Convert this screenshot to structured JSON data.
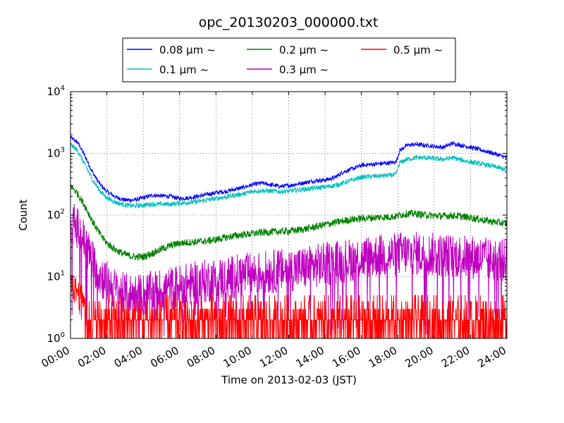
{
  "chart_data": {
    "type": "line",
    "title": "opc_20130203_000000.txt",
    "xlabel": "Time on 2013-02-03 (JST)",
    "ylabel": "Count",
    "yscale": "log",
    "ylim": [
      1,
      10000
    ],
    "xlim": [
      "00:00",
      "24:00"
    ],
    "grid": true,
    "legend_position": "top",
    "x_ticks": [
      "00:00",
      "02:00",
      "04:00",
      "06:00",
      "08:00",
      "10:00",
      "12:00",
      "14:00",
      "16:00",
      "18:00",
      "20:00",
      "22:00",
      "24:00"
    ],
    "y_ticks": [
      {
        "base": "10",
        "exp": "0",
        "value": 1
      },
      {
        "base": "10",
        "exp": "1",
        "value": 10
      },
      {
        "base": "10",
        "exp": "2",
        "value": 100
      },
      {
        "base": "10",
        "exp": "3",
        "value": 1000
      },
      {
        "base": "10",
        "exp": "4",
        "value": 10000
      }
    ],
    "series": [
      {
        "name": "0.08 μm ~",
        "color": "#0000ff",
        "x": [
          0,
          0.4,
          0.8,
          1.2,
          1.6,
          2.0,
          2.5,
          3.0,
          3.5,
          4.0,
          4.5,
          5.0,
          5.5,
          6.0,
          6.5,
          7.0,
          7.5,
          8.0,
          8.5,
          9.0,
          9.5,
          10.0,
          10.5,
          11.0,
          11.5,
          12.0,
          12.5,
          13.0,
          13.5,
          14.0,
          14.5,
          15.0,
          15.5,
          16.0,
          16.5,
          17.0,
          17.5,
          17.9,
          18.1,
          18.5,
          19.0,
          19.5,
          20.0,
          20.5,
          21.0,
          21.5,
          22.0,
          22.5,
          23.0,
          23.5,
          24.0
        ],
        "y": [
          1800,
          1500,
          900,
          500,
          320,
          240,
          195,
          175,
          175,
          190,
          210,
          205,
          200,
          185,
          190,
          200,
          215,
          230,
          240,
          260,
          280,
          310,
          330,
          310,
          290,
          300,
          320,
          340,
          360,
          370,
          400,
          500,
          560,
          640,
          660,
          680,
          700,
          720,
          1100,
          1350,
          1400,
          1350,
          1300,
          1250,
          1450,
          1350,
          1250,
          1150,
          1050,
          950,
          850
        ]
      },
      {
        "name": "0.1 μm ~",
        "color": "#00bfbf",
        "x": [
          0,
          0.4,
          0.8,
          1.2,
          1.6,
          2.0,
          2.5,
          3.0,
          3.5,
          4.0,
          4.5,
          5.0,
          5.5,
          6.0,
          6.5,
          7.0,
          7.5,
          8.0,
          8.5,
          9.0,
          9.5,
          10.0,
          10.5,
          11.0,
          11.5,
          12.0,
          12.5,
          13.0,
          13.5,
          14.0,
          14.5,
          15.0,
          15.5,
          16.0,
          16.5,
          17.0,
          17.5,
          17.9,
          18.1,
          18.5,
          19.0,
          19.5,
          20.0,
          20.5,
          21.0,
          21.5,
          22.0,
          22.5,
          23.0,
          23.5,
          24.0
        ],
        "y": [
          1400,
          1100,
          650,
          380,
          250,
          190,
          160,
          145,
          140,
          145,
          150,
          150,
          150,
          155,
          160,
          165,
          175,
          185,
          195,
          210,
          220,
          240,
          250,
          245,
          240,
          245,
          255,
          265,
          275,
          285,
          300,
          330,
          370,
          410,
          420,
          430,
          440,
          450,
          700,
          800,
          850,
          850,
          820,
          800,
          850,
          780,
          720,
          680,
          640,
          590,
          530
        ]
      },
      {
        "name": "0.2 μm ~",
        "color": "#008000",
        "x": [
          0,
          0.4,
          0.8,
          1.2,
          1.6,
          2.0,
          2.5,
          3.0,
          3.5,
          4.0,
          4.5,
          5.0,
          5.5,
          6.0,
          6.5,
          7.0,
          7.5,
          8.0,
          8.5,
          9.0,
          9.5,
          10.0,
          10.5,
          11.0,
          11.5,
          12.0,
          12.5,
          13.0,
          13.5,
          14.0,
          14.5,
          15.0,
          15.5,
          16.0,
          16.5,
          17.0,
          17.5,
          17.9,
          18.1,
          18.5,
          19.0,
          19.5,
          20.0,
          20.5,
          21.0,
          21.5,
          22.0,
          22.5,
          23.0,
          23.5,
          24.0
        ],
        "y": [
          300,
          220,
          140,
          80,
          50,
          35,
          27,
          23,
          21,
          21,
          24,
          28,
          32,
          35,
          36,
          37,
          38,
          40,
          43,
          46,
          48,
          50,
          52,
          53,
          54,
          55,
          57,
          60,
          65,
          70,
          75,
          80,
          85,
          88,
          90,
          92,
          93,
          95,
          100,
          105,
          105,
          100,
          98,
          96,
          98,
          95,
          90,
          85,
          80,
          76,
          72
        ]
      },
      {
        "name": "0.3 μm ~",
        "color": "#bf00bf",
        "x": [
          0,
          0.4,
          0.8,
          1.2,
          1.6,
          2.0,
          2.5,
          3.0,
          3.5,
          4.0,
          4.5,
          5.0,
          5.5,
          6.0,
          6.5,
          7.0,
          7.5,
          8.0,
          8.5,
          9.0,
          9.5,
          10.0,
          10.5,
          11.0,
          11.5,
          12.0,
          12.5,
          13.0,
          13.5,
          14.0,
          14.5,
          15.0,
          15.5,
          16.0,
          16.5,
          17.0,
          17.5,
          17.9,
          18.1,
          18.5,
          19.0,
          19.5,
          20.0,
          20.5,
          21.0,
          21.5,
          22.0,
          22.5,
          23.0,
          23.5,
          24.0
        ],
        "y": [
          80,
          60,
          35,
          18,
          11,
          8,
          6,
          5,
          5,
          5,
          5.5,
          6,
          6.5,
          7,
          7.5,
          8,
          8.5,
          9,
          9.5,
          10,
          10.5,
          11,
          11.5,
          12,
          12.5,
          13,
          13.5,
          14,
          15,
          16,
          17,
          18,
          19,
          20,
          21,
          22,
          22,
          23,
          24,
          24,
          24,
          23,
          23,
          22,
          22,
          21,
          21,
          20,
          19,
          19,
          18
        ]
      },
      {
        "name": "0.5 μm ~",
        "color": "#ff0000",
        "x": [
          0,
          0.4,
          0.8,
          1.2,
          1.6,
          2.0,
          2.5,
          3.0,
          3.5,
          4.0,
          4.5,
          5.0,
          5.5,
          6.0,
          6.5,
          7.0,
          7.5,
          8.0,
          8.5,
          9.0,
          9.5,
          10.0,
          10.5,
          11.0,
          11.5,
          12.0,
          12.5,
          13.0,
          13.5,
          14.0,
          14.5,
          15.0,
          15.5,
          16.0,
          16.5,
          17.0,
          17.5,
          17.9,
          18.1,
          18.5,
          19.0,
          19.5,
          20.0,
          20.5,
          21.0,
          21.5,
          22.0,
          22.5,
          23.0,
          23.5,
          24.0
        ],
        "y": [
          8,
          6,
          4,
          3,
          2,
          1.8,
          1.5,
          1.4,
          1.3,
          1.3,
          1.3,
          1.4,
          1.4,
          1.5,
          1.5,
          1.5,
          1.6,
          1.6,
          1.7,
          1.7,
          1.8,
          1.8,
          1.9,
          1.9,
          2,
          2,
          2.1,
          2.1,
          2.2,
          2.3,
          2.4,
          2.5,
          2.5,
          2.6,
          2.7,
          2.8,
          2.8,
          2.9,
          3,
          3,
          3,
          3,
          3,
          3,
          3,
          3,
          3,
          3,
          3,
          3,
          3
        ]
      }
    ]
  }
}
